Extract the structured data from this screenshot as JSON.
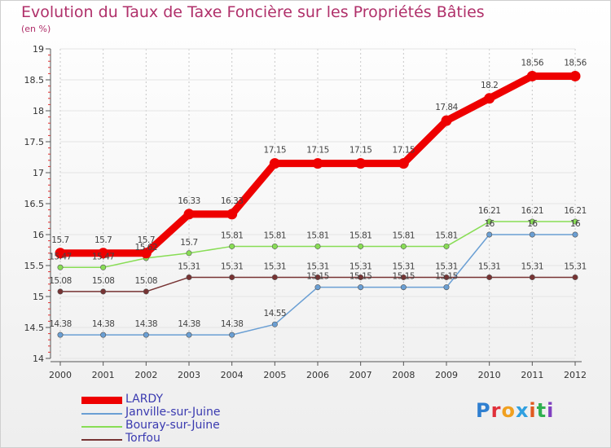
{
  "title": "Evolution du Taux de Taxe Foncière sur les Propriétés Bâties",
  "unit_label": "(en %)",
  "logo": {
    "text": "Proxiti",
    "letter_colors": [
      "#2f7fd0",
      "#e0303a",
      "#f0a020",
      "#30a0e0",
      "#e05a20",
      "#30b050",
      "#8040c0"
    ]
  },
  "chart_data": {
    "type": "line",
    "x": [
      "2000",
      "2001",
      "2002",
      "2003",
      "2004",
      "2005",
      "2006",
      "2007",
      "2008",
      "2009",
      "2010",
      "2011",
      "2012"
    ],
    "ylim": [
      14,
      19
    ],
    "yticks": [
      "14",
      "14.5",
      "15",
      "15.5",
      "16",
      "16.5",
      "17",
      "17.5",
      "18",
      "18.5",
      "19"
    ],
    "series": [
      {
        "name": "LARDY",
        "color": "#ee0000",
        "values": [
          15.7,
          15.7,
          15.7,
          16.33,
          16.33,
          17.15,
          17.15,
          17.15,
          17.15,
          17.84,
          18.2,
          18.56,
          18.56
        ],
        "labels": [
          "15.7",
          "15.7",
          "15.7",
          "16.33",
          "16.33",
          "17.15",
          "17.15",
          "17.15",
          "17.15",
          "17.84",
          "18.2",
          "18.56",
          "18.56"
        ]
      },
      {
        "name": "Janville-sur-Juine",
        "color": "#6a9fd4",
        "values": [
          14.38,
          14.38,
          14.38,
          14.38,
          14.38,
          14.55,
          15.15,
          15.15,
          15.15,
          15.15,
          16.0,
          16.0,
          16.0
        ],
        "labels": [
          "14.38",
          "14.38",
          "14.38",
          "14.38",
          "14.38",
          "14.55",
          "15.15",
          "15.15",
          "15.15",
          "15.15",
          "16",
          "16",
          "16"
        ]
      },
      {
        "name": "Bouray-sur-Juine",
        "color": "#88dd55",
        "values": [
          15.47,
          15.47,
          15.62,
          15.7,
          15.81,
          15.81,
          15.81,
          15.81,
          15.81,
          15.81,
          16.21,
          16.21,
          16.21
        ],
        "labels": [
          "15.47",
          "15.47",
          "15.62",
          "15.7",
          "15.81",
          "15.81",
          "15.81",
          "15.81",
          "15.81",
          "15.81",
          "16.21",
          "16.21",
          "16.21"
        ]
      },
      {
        "name": "Torfou",
        "color": "#773333",
        "values": [
          15.08,
          15.08,
          15.08,
          15.31,
          15.31,
          15.31,
          15.31,
          15.31,
          15.31,
          15.31,
          15.31,
          15.31,
          15.31
        ],
        "labels": [
          "15.08",
          "15.08",
          "15.08",
          "15.31",
          "15.31",
          "15.31",
          "15.31",
          "15.31",
          "15.31",
          "15.31",
          "15.31",
          "15.31",
          "15.31"
        ]
      }
    ],
    "legend": [
      "LARDY",
      "Janville-sur-Juine",
      "Bouray-sur-Juine",
      "Torfou"
    ]
  }
}
